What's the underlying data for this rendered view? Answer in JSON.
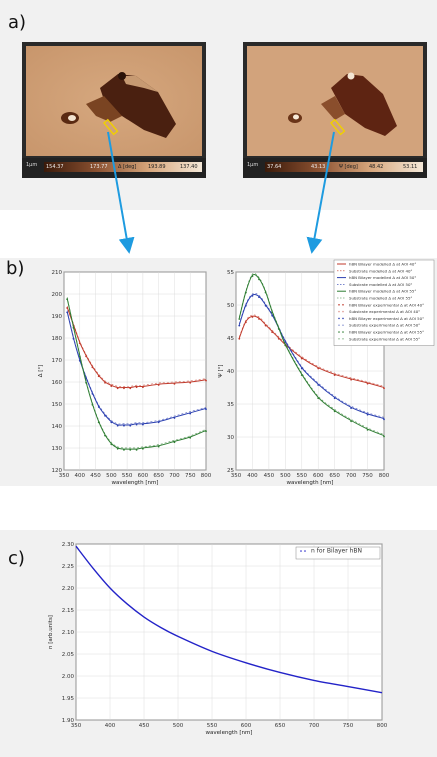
{
  "labels": {
    "a": "a)",
    "b": "b)",
    "c": "c)"
  },
  "maps": [
    {
      "scale": "1μm",
      "ticks": [
        "154.37",
        "173.77",
        "Δ [deg]",
        "193.89",
        "137.40"
      ]
    },
    {
      "scale": "1μm",
      "ticks": [
        "37.64",
        "43.13",
        "Ψ [deg]",
        "48.42",
        "53.11"
      ]
    }
  ],
  "colors": {
    "red": "#c0392b",
    "blue": "#2a3fb0",
    "green": "#2e7d32",
    "arrow": "#1e9be0",
    "line_c": "#2323c8"
  },
  "chart_data": [
    {
      "type": "line",
      "xlabel": "wavelength [nm]",
      "ylabel": "Δ [°]",
      "xlim": [
        350,
        800
      ],
      "ylim": [
        120,
        210
      ],
      "xticks": [
        "350",
        "400",
        "450",
        "500",
        "550",
        "600",
        "650",
        "700",
        "750",
        "800"
      ],
      "yticks": [
        "120",
        "130",
        "140",
        "150",
        "160",
        "170",
        "180",
        "190",
        "200",
        "210"
      ],
      "x": [
        360,
        380,
        400,
        420,
        440,
        460,
        480,
        500,
        520,
        540,
        560,
        580,
        600,
        650,
        700,
        750,
        800
      ],
      "series": [
        {
          "color": "red",
          "values": [
            194,
            186,
            178,
            172,
            167,
            163,
            160,
            158.5,
            157.5,
            157.5,
            157.5,
            158,
            158,
            159,
            159.5,
            160,
            161
          ]
        },
        {
          "color": "blue",
          "values": [
            192,
            180,
            170,
            162,
            155,
            149,
            145,
            142,
            140.5,
            140.5,
            140.5,
            141,
            141,
            142,
            144,
            146,
            148
          ]
        },
        {
          "color": "green",
          "values": [
            198,
            185,
            172,
            160,
            150,
            142,
            136,
            132,
            130,
            129.5,
            129.5,
            129.5,
            130,
            131,
            133,
            135,
            138
          ]
        }
      ]
    },
    {
      "type": "line",
      "xlabel": "wavelength [nm]",
      "ylabel": "Ψ [°]",
      "xlim": [
        350,
        800
      ],
      "ylim": [
        25,
        55
      ],
      "xticks": [
        "350",
        "400",
        "450",
        "500",
        "550",
        "600",
        "650",
        "700",
        "750",
        "800"
      ],
      "yticks": [
        "25",
        "30",
        "35",
        "40",
        "45",
        "50",
        "55"
      ],
      "x": [
        360,
        380,
        400,
        420,
        440,
        460,
        480,
        500,
        550,
        600,
        650,
        700,
        750,
        800
      ],
      "series": [
        {
          "color": "red",
          "values": [
            45,
            47.5,
            48.3,
            48,
            47,
            46,
            45,
            44,
            42,
            40.5,
            39.5,
            38.8,
            38.2,
            37.5
          ]
        },
        {
          "color": "blue",
          "values": [
            47,
            50,
            51.5,
            51.3,
            50,
            48.5,
            46.5,
            44.5,
            40.5,
            38,
            36,
            34.5,
            33.5,
            32.8
          ]
        },
        {
          "color": "green",
          "values": [
            48,
            52,
            54.5,
            54,
            52,
            49,
            46.5,
            44,
            39.5,
            36,
            34,
            32.5,
            31.2,
            30.2
          ]
        }
      ],
      "legend": [
        {
          "label": "hBN Bilayer modelled Δ at AOI 40°",
          "color": "red",
          "style": "solid"
        },
        {
          "label": "Substrate modelled Δ at AOI 40°",
          "color": "red",
          "style": "dashed"
        },
        {
          "label": "hBN Bilayer modelled Δ at AOI 50°",
          "color": "blue",
          "style": "solid"
        },
        {
          "label": "Substrate modelled Δ at AOI 50°",
          "color": "blue",
          "style": "dashed"
        },
        {
          "label": "hBN Bilayer modelled Δ at AOI 55°",
          "color": "green",
          "style": "solid"
        },
        {
          "label": "Substrate modelled Δ at AOI 55°",
          "color": "green",
          "style": "dashed"
        },
        {
          "label": "hBN Bilayer experimental Δ at AOI 40°",
          "color": "red",
          "style": "dots"
        },
        {
          "label": "Substrate experimental Δ at AOI 40°",
          "color": "red",
          "style": "faint"
        },
        {
          "label": "hBN Bilayer experimental Δ at AOI 50°",
          "color": "blue",
          "style": "dots"
        },
        {
          "label": "Substrate experimental Δ at AOI 50°",
          "color": "blue",
          "style": "faint"
        },
        {
          "label": "hBN Bilayer experimental Δ at AOI 55°",
          "color": "green",
          "style": "dots"
        },
        {
          "label": "Substrate experimental Δ at AOI 55°",
          "color": "green",
          "style": "faint"
        }
      ],
      "legend_position": "top-right"
    },
    {
      "type": "line",
      "xlabel": "wavelength [nm]",
      "ylabel": "n [arb.units]",
      "xlim": [
        350,
        800
      ],
      "ylim": [
        1.9,
        2.3
      ],
      "xticks": [
        "350",
        "400",
        "450",
        "500",
        "550",
        "600",
        "650",
        "700",
        "750",
        "800"
      ],
      "yticks": [
        "1.90",
        "1.95",
        "2.00",
        "2.05",
        "2.10",
        "2.15",
        "2.20",
        "2.25",
        "2.30"
      ],
      "x": [
        350,
        375,
        400,
        425,
        450,
        475,
        500,
        550,
        600,
        650,
        700,
        750,
        800
      ],
      "series": [
        {
          "name": "n for Bilayer hBN",
          "color": "line_c",
          "values": [
            2.295,
            2.245,
            2.2,
            2.164,
            2.134,
            2.11,
            2.09,
            2.056,
            2.03,
            2.008,
            1.99,
            1.976,
            1.962
          ]
        }
      ],
      "legend_position": "top-right"
    }
  ]
}
